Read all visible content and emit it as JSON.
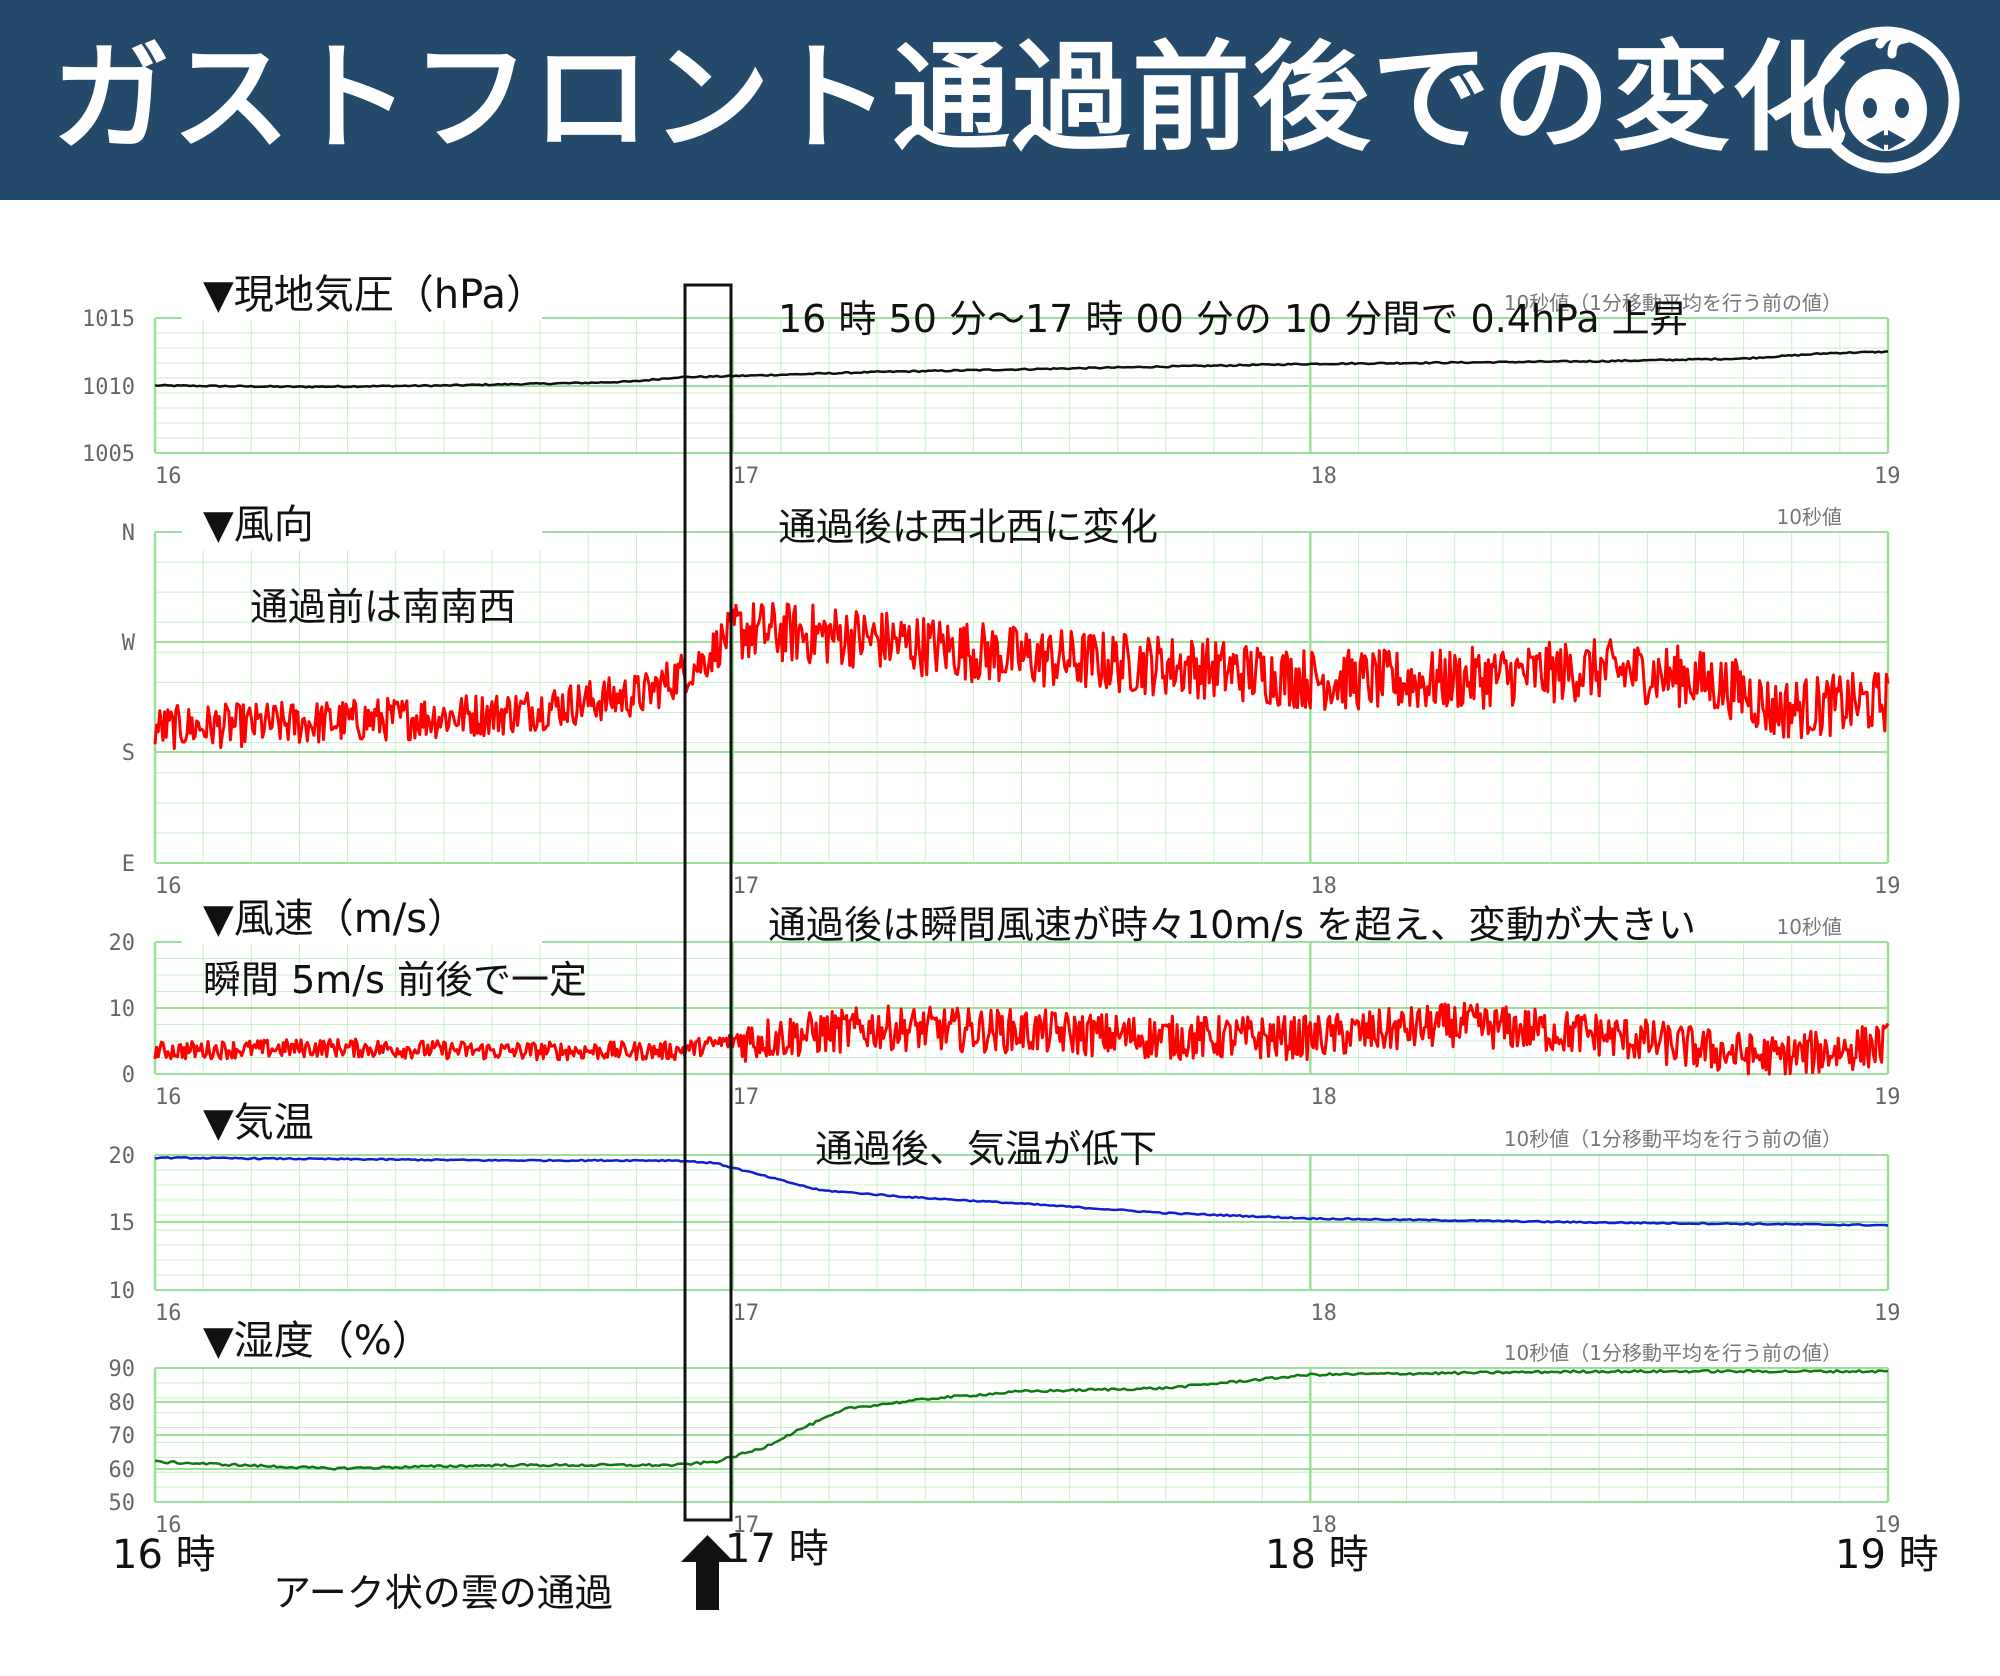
{
  "header": {
    "title": "ガストフロント通過前後での変化"
  },
  "panel_titles": {
    "pressure": "▼現地気圧（hPa）",
    "wind_dir": "▼風向",
    "wind_speed": "▼風速（m/s）",
    "temperature": "▼気温",
    "humidity": "▼湿度（%）"
  },
  "panel_notes": {
    "pressure": "10秒値（1分移動平均を行う前の値）",
    "wind_dir": "10秒値",
    "wind_speed": "10秒値",
    "temperature": "10秒値（1分移動平均を行う前の値）",
    "humidity": "10秒値（1分移動平均を行う前の値）"
  },
  "annotations": {
    "pressure": "16 時 50 分〜17 時 00 分の 10 分間で 0.4hPa 上昇",
    "wind_dir_after": "通過後は西北西に変化",
    "wind_dir_before": "通過前は南南西",
    "wind_speed_before": "瞬間 5m/s 前後で一定",
    "wind_speed_after": "通過後は瞬間風速が時々10m/s を超え、変動が大きい",
    "temperature": "通過後、気温が低下",
    "arc_cloud": "アーク状の雲の通過"
  },
  "bottom_time_labels": [
    "16 時",
    "17 時",
    "18 時",
    "19 時"
  ],
  "panel_hour_ticks": [
    "16",
    "17",
    "18",
    "19"
  ],
  "colors": {
    "header_bg": "#234a6b",
    "grid": "#9be09b",
    "pressure": "#111111",
    "wind": "#ff0000",
    "temperature": "#1020d0",
    "humidity": "#107a10"
  },
  "chart_data": [
    {
      "type": "line",
      "id": "pressure",
      "title": "▼現地気圧（hPa）",
      "ylim": [
        1005,
        1015
      ],
      "yticks": [
        "1015",
        "1010",
        "1005"
      ],
      "x": [
        16.0,
        16.25,
        16.5,
        16.75,
        16.83,
        16.9,
        17.0,
        17.25,
        17.5,
        17.75,
        18.0,
        18.25,
        18.5,
        18.75,
        18.9,
        19.0
      ],
      "values": [
        1010.0,
        1009.9,
        1010.0,
        1010.2,
        1010.3,
        1010.6,
        1010.7,
        1011.0,
        1011.2,
        1011.4,
        1011.6,
        1011.7,
        1011.8,
        1012.0,
        1012.4,
        1012.5
      ]
    },
    {
      "type": "line",
      "id": "wind_dir",
      "title": "▼風向",
      "yticks": [
        "N",
        "W",
        "S",
        "E"
      ],
      "ylim": [
        90,
        360
      ],
      "x": [
        16.0,
        16.3,
        16.6,
        16.85,
        16.95,
        17.0,
        17.2,
        17.5,
        17.8,
        18.0,
        18.2,
        18.5,
        18.65,
        18.75,
        18.8,
        19.0
      ],
      "values": [
        200,
        205,
        212,
        228,
        255,
        280,
        275,
        258,
        250,
        240,
        238,
        248,
        242,
        230,
        215,
        222
      ]
    },
    {
      "type": "line",
      "id": "wind_speed",
      "title": "▼風速（m/s）",
      "ylim": [
        0,
        20
      ],
      "yticks": [
        "20",
        "10",
        "0"
      ],
      "x": [
        16.0,
        16.3,
        16.6,
        16.9,
        17.0,
        17.25,
        17.5,
        17.75,
        18.0,
        18.25,
        18.5,
        18.7,
        18.8,
        19.0
      ],
      "values": [
        3.5,
        4.0,
        3.5,
        3.5,
        5.0,
        7.0,
        6.5,
        5.5,
        5.5,
        7.5,
        6.0,
        3.5,
        2.5,
        4.5
      ]
    },
    {
      "type": "line",
      "id": "temperature",
      "title": "▼気温",
      "ylim": [
        10,
        20
      ],
      "yticks": [
        "20",
        "15",
        "10"
      ],
      "x": [
        16.0,
        16.3,
        16.6,
        16.9,
        16.97,
        17.05,
        17.15,
        17.3,
        17.5,
        17.75,
        18.0,
        18.5,
        19.0
      ],
      "values": [
        19.8,
        19.7,
        19.6,
        19.6,
        19.4,
        18.5,
        17.4,
        16.9,
        16.4,
        15.7,
        15.3,
        15.0,
        14.8
      ]
    },
    {
      "type": "line",
      "id": "humidity",
      "title": "▼湿度（%）",
      "ylim": [
        50,
        90
      ],
      "yticks": [
        "90",
        "80",
        "70",
        "60",
        "50"
      ],
      "x": [
        16.0,
        16.3,
        16.6,
        16.9,
        16.97,
        17.05,
        17.12,
        17.2,
        17.35,
        17.5,
        17.75,
        18.0,
        18.5,
        19.0
      ],
      "values": [
        62,
        60,
        61,
        61,
        62,
        66,
        72,
        78,
        81,
        83,
        84,
        88,
        89,
        89
      ]
    }
  ]
}
